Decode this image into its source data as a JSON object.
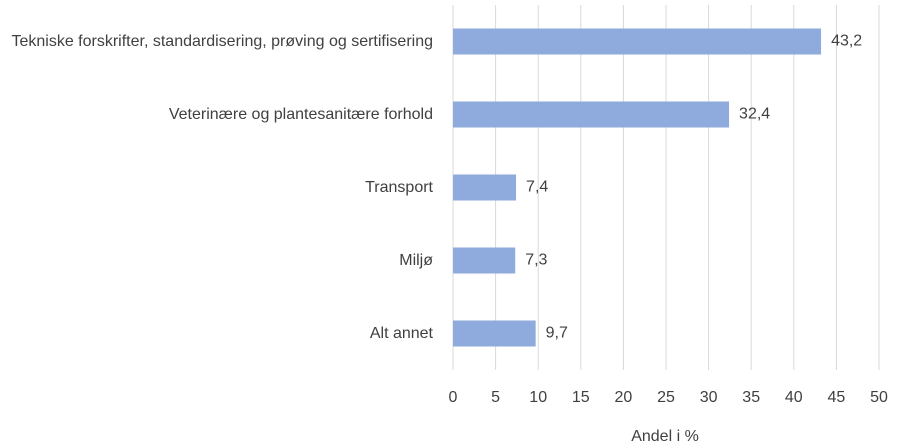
{
  "chart_data": {
    "type": "bar",
    "orientation": "horizontal",
    "categories": [
      "Tekniske forskrifter, standardisering, prøving og sertifisering",
      "Veterinære og plantesanitære forhold",
      "Transport",
      "Miljø",
      "Alt annet"
    ],
    "values": [
      43.2,
      32.4,
      7.4,
      7.3,
      9.7
    ],
    "value_labels": [
      "43,2",
      "32,4",
      "7,4",
      "7,3",
      "9,7"
    ],
    "color": "#8faadc",
    "xlabel": "Andel i %",
    "xlim": [
      0,
      50
    ],
    "xticks": [
      0,
      5,
      10,
      15,
      20,
      25,
      30,
      35,
      40,
      45,
      50
    ],
    "grid": true
  }
}
